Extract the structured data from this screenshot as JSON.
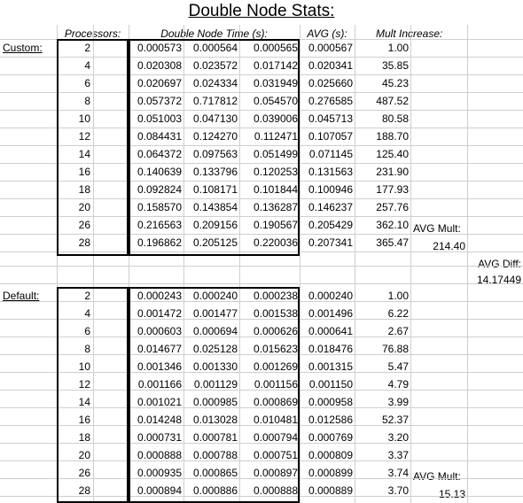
{
  "title": "Double Node Stats:",
  "headers": {
    "processors": "Processors:",
    "time": "Double Node Time (s):",
    "avg": "AVG (s):",
    "mult": "Mult Increase:"
  },
  "custom": {
    "label": "Custom:",
    "rows": [
      {
        "p": "2",
        "t1": "0.000573",
        "t2": "0.000564",
        "t3": "0.000565",
        "avg": "0.000567",
        "mult": "1.00"
      },
      {
        "p": "4",
        "t1": "0.020308",
        "t2": "0.023572",
        "t3": "0.017142",
        "avg": "0.020341",
        "mult": "35.85"
      },
      {
        "p": "6",
        "t1": "0.020697",
        "t2": "0.024334",
        "t3": "0.031949",
        "avg": "0.025660",
        "mult": "45.23"
      },
      {
        "p": "8",
        "t1": "0.057372",
        "t2": "0.717812",
        "t3": "0.054570",
        "avg": "0.276585",
        "mult": "487.52"
      },
      {
        "p": "10",
        "t1": "0.051003",
        "t2": "0.047130",
        "t3": "0.039006",
        "avg": "0.045713",
        "mult": "80.58"
      },
      {
        "p": "12",
        "t1": "0.084431",
        "t2": "0.124270",
        "t3": "0.112471",
        "avg": "0.107057",
        "mult": "188.70"
      },
      {
        "p": "14",
        "t1": "0.064372",
        "t2": "0.097563",
        "t3": "0.051499",
        "avg": "0.071145",
        "mult": "125.40"
      },
      {
        "p": "16",
        "t1": "0.140639",
        "t2": "0.133796",
        "t3": "0.120253",
        "avg": "0.131563",
        "mult": "231.90"
      },
      {
        "p": "18",
        "t1": "0.092824",
        "t2": "0.108171",
        "t3": "0.101844",
        "avg": "0.100946",
        "mult": "177.93"
      },
      {
        "p": "20",
        "t1": "0.158570",
        "t2": "0.143854",
        "t3": "0.136287",
        "avg": "0.146237",
        "mult": "257.76"
      },
      {
        "p": "26",
        "t1": "0.216563",
        "t2": "0.209156",
        "t3": "0.190567",
        "avg": "0.205429",
        "mult": "362.10"
      },
      {
        "p": "28",
        "t1": "0.196862",
        "t2": "0.205125",
        "t3": "0.220036",
        "avg": "0.207341",
        "mult": "365.47"
      }
    ],
    "avg_mult_label": "AVG Mult:",
    "avg_mult_value": "214.40"
  },
  "avg_diff": {
    "label": "AVG Diff:",
    "value": "14.17449"
  },
  "default": {
    "label": "Default:",
    "rows": [
      {
        "p": "2",
        "t1": "0.000243",
        "t2": "0.000240",
        "t3": "0.000238",
        "avg": "0.000240",
        "mult": "1.00"
      },
      {
        "p": "4",
        "t1": "0.001472",
        "t2": "0.001477",
        "t3": "0.001538",
        "avg": "0.001496",
        "mult": "6.22"
      },
      {
        "p": "6",
        "t1": "0.000603",
        "t2": "0.000694",
        "t3": "0.000626",
        "avg": "0.000641",
        "mult": "2.67"
      },
      {
        "p": "8",
        "t1": "0.014677",
        "t2": "0.025128",
        "t3": "0.015623",
        "avg": "0.018476",
        "mult": "76.88"
      },
      {
        "p": "10",
        "t1": "0.001346",
        "t2": "0.001330",
        "t3": "0.001269",
        "avg": "0.001315",
        "mult": "5.47"
      },
      {
        "p": "12",
        "t1": "0.001166",
        "t2": "0.001129",
        "t3": "0.001156",
        "avg": "0.001150",
        "mult": "4.79"
      },
      {
        "p": "14",
        "t1": "0.001021",
        "t2": "0.000985",
        "t3": "0.000869",
        "avg": "0.000958",
        "mult": "3.99"
      },
      {
        "p": "16",
        "t1": "0.014248",
        "t2": "0.013028",
        "t3": "0.010481",
        "avg": "0.012586",
        "mult": "52.37"
      },
      {
        "p": "18",
        "t1": "0.000731",
        "t2": "0.000781",
        "t3": "0.000794",
        "avg": "0.000769",
        "mult": "3.20"
      },
      {
        "p": "20",
        "t1": "0.000888",
        "t2": "0.000788",
        "t3": "0.000751",
        "avg": "0.000809",
        "mult": "3.37"
      },
      {
        "p": "26",
        "t1": "0.000935",
        "t2": "0.000865",
        "t3": "0.000897",
        "avg": "0.000899",
        "mult": "3.74"
      },
      {
        "p": "28",
        "t1": "0.000894",
        "t2": "0.000886",
        "t3": "0.000888",
        "avg": "0.000889",
        "mult": "3.70"
      }
    ],
    "avg_mult_label": "AVG Mult:",
    "avg_mult_value": "15.13"
  }
}
